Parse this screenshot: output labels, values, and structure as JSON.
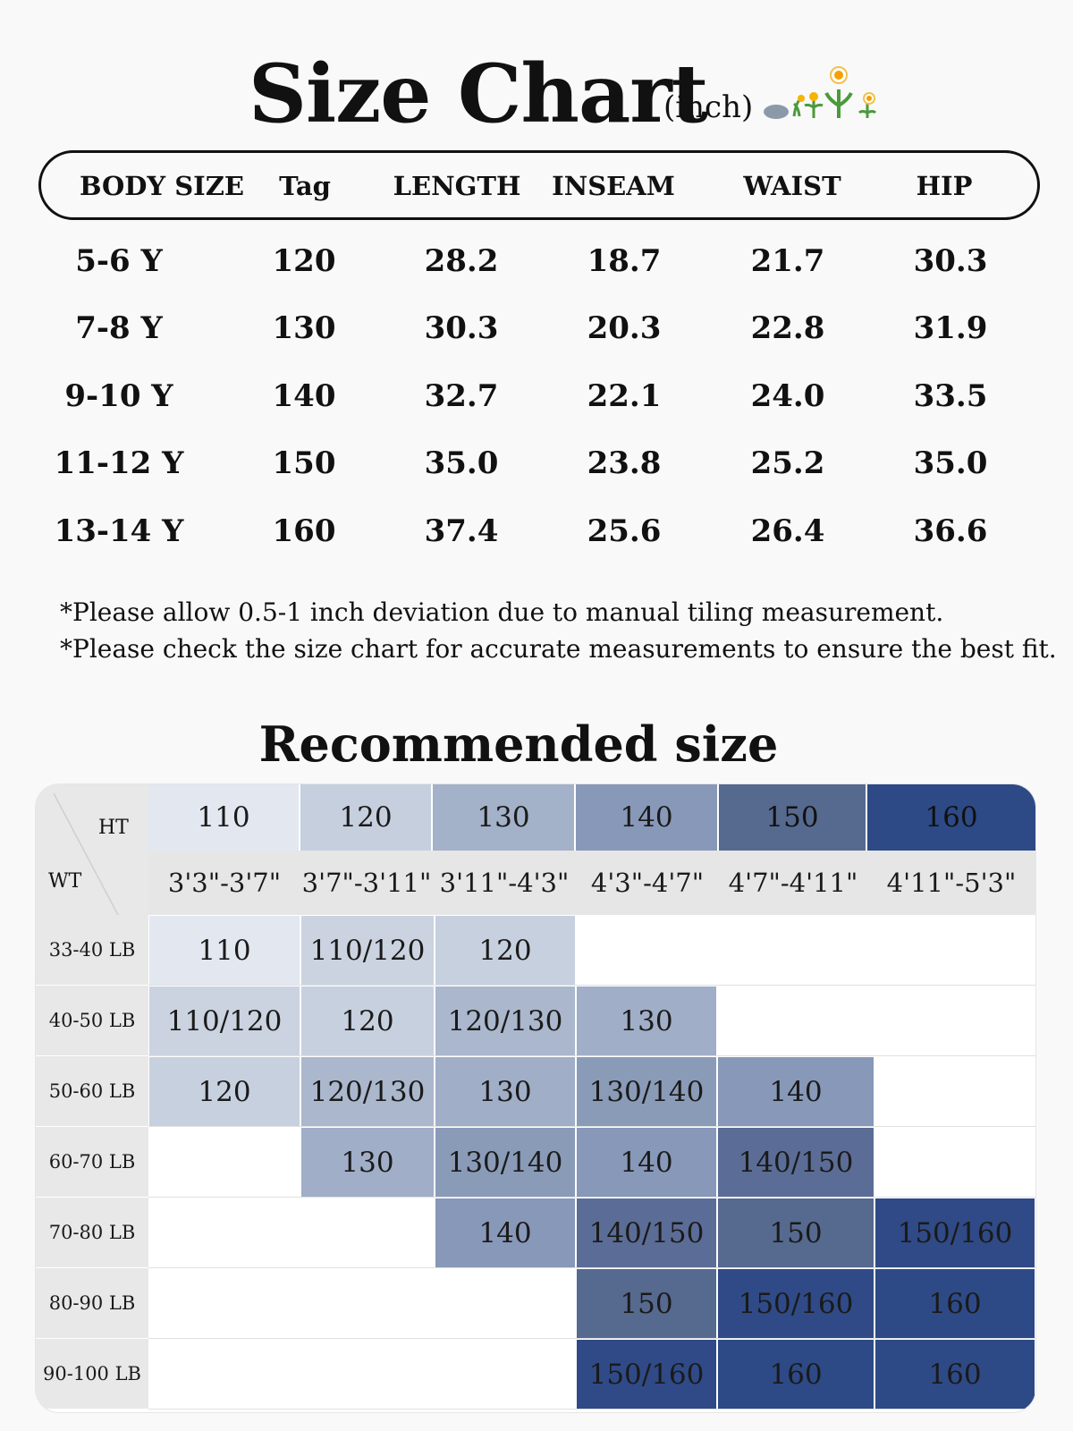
{
  "title": "Size Chart",
  "unit": "(inch)",
  "decoration_icon": "flowers-icon",
  "measurements": {
    "headers": [
      "BODY SIZE",
      "Tag",
      "LENGTH",
      "INSEAM",
      "WAIST",
      "HIP"
    ],
    "rows": [
      [
        "5-6 Y",
        "120",
        "28.2",
        "18.7",
        "21.7",
        "30.3"
      ],
      [
        "7-8 Y",
        "130",
        "30.3",
        "20.3",
        "22.8",
        "31.9"
      ],
      [
        "9-10 Y",
        "140",
        "32.7",
        "22.1",
        "24.0",
        "33.5"
      ],
      [
        "11-12 Y",
        "150",
        "35.0",
        "23.8",
        "25.2",
        "35.0"
      ],
      [
        "13-14 Y",
        "160",
        "37.4",
        "25.6",
        "26.4",
        "36.6"
      ]
    ]
  },
  "notes": [
    "*Please allow 0.5-1 inch deviation due to manual tiling measurement.",
    "*Please check the size chart for accurate measurements to ensure the best fit."
  ],
  "recommended": {
    "title": "Recommended size",
    "corner_ht": "HT",
    "corner_wt": "WT",
    "sizes": [
      "110",
      "120",
      "130",
      "140",
      "150",
      "160"
    ],
    "heights": [
      "3'3\"-3'7\"",
      "3'7\"-3'11\"",
      "3'11\"-4'3\"",
      "4'3\"-4'7\"",
      "4'7\"-4'11\"",
      "4'11\"-5'3\""
    ],
    "weights": [
      "33-40 LB",
      "40-50  LB",
      "50-60  LB",
      "60-70  LB",
      "70-80  LB",
      "80-90 LB",
      "90-100  LB"
    ],
    "grid": [
      [
        "110",
        "110/120",
        "120",
        "",
        "",
        ""
      ],
      [
        "110/120",
        "120",
        "120/130",
        "130",
        "",
        ""
      ],
      [
        "120",
        "120/130",
        "130",
        "130/140",
        "140",
        ""
      ],
      [
        "",
        "130",
        "130/140",
        "140",
        "140/150",
        ""
      ],
      [
        "",
        "",
        "140",
        "140/150",
        "150",
        "150/160"
      ],
      [
        "",
        "",
        "",
        "150",
        "150/160",
        "160"
      ],
      [
        "",
        "",
        "",
        "150/160",
        "160",
        "160"
      ]
    ],
    "colors": {
      "110": "#e2e7f0",
      "110/120": "#cbd3e0",
      "120": "#c7d0de",
      "120/130": "#aab7cc",
      "130": "#a0aec7",
      "130/140": "#8a9bb8",
      "140": "#8798b8",
      "140/150": "#5b6d96",
      "150": "#56698f",
      "150/160": "#2f4a86",
      "160": "#2d4a86"
    },
    "header_colors": [
      "#e2e7f0",
      "#c6cfde",
      "#a3b1c9",
      "#8798b8",
      "#56698f",
      "#2d4a86"
    ],
    "height_row_color": "#e6e6e6",
    "weight_col_color": "#e8e8e8"
  }
}
